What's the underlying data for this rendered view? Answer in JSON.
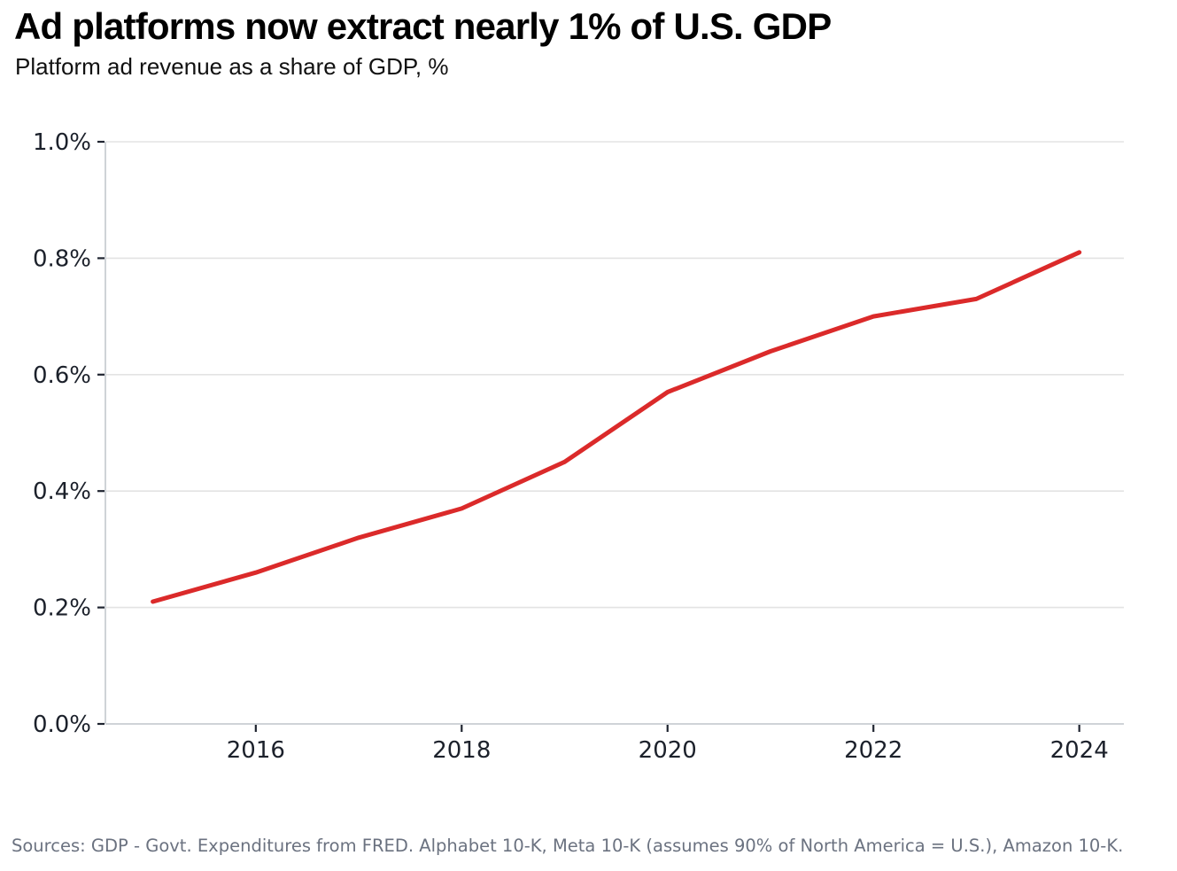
{
  "header": {
    "title": "Ad platforms now extract nearly 1% of U.S. GDP",
    "subtitle": "Platform ad revenue as a share of GDP, %"
  },
  "footer": {
    "sources": "Sources: GDP - Govt. Expenditures from FRED. Alphabet 10-K, Meta 10-K (assumes 90% of North America = U.S.), Amazon 10-K."
  },
  "chart_data": {
    "type": "line",
    "title": "Ad platforms now extract nearly 1% of U.S. GDP",
    "subtitle": "Platform ad revenue as a share of GDP, %",
    "xlabel": "",
    "ylabel": "",
    "x": [
      2015,
      2016,
      2017,
      2018,
      2019,
      2020,
      2021,
      2022,
      2023,
      2024
    ],
    "series": [
      {
        "name": "Platform ad revenue as a share of GDP (%)",
        "values": [
          0.21,
          0.26,
          0.32,
          0.37,
          0.45,
          0.57,
          0.64,
          0.7,
          0.73,
          0.81
        ]
      }
    ],
    "ylim": [
      0.0,
      1.0
    ],
    "yticks": [
      0.0,
      0.2,
      0.4,
      0.6,
      0.8,
      1.0
    ],
    "ytick_labels": [
      "0.0%",
      "0.2%",
      "0.4%",
      "0.6%",
      "0.8%",
      "1.0%"
    ],
    "xticks": [
      2016,
      2018,
      2020,
      2022,
      2024
    ],
    "xtick_labels": [
      "2016",
      "2018",
      "2020",
      "2022",
      "2024"
    ],
    "grid": "horizontal",
    "legend_position": "none",
    "colors": {
      "line": "#db2a2a",
      "gridline": "#e3e3e3",
      "axis_line": "#cfd3d7",
      "tick_mark": "#1f2430",
      "tick_label": "#1c212b",
      "title": "#000000",
      "subtitle": "#111111",
      "source_text": "#6b7280"
    }
  }
}
